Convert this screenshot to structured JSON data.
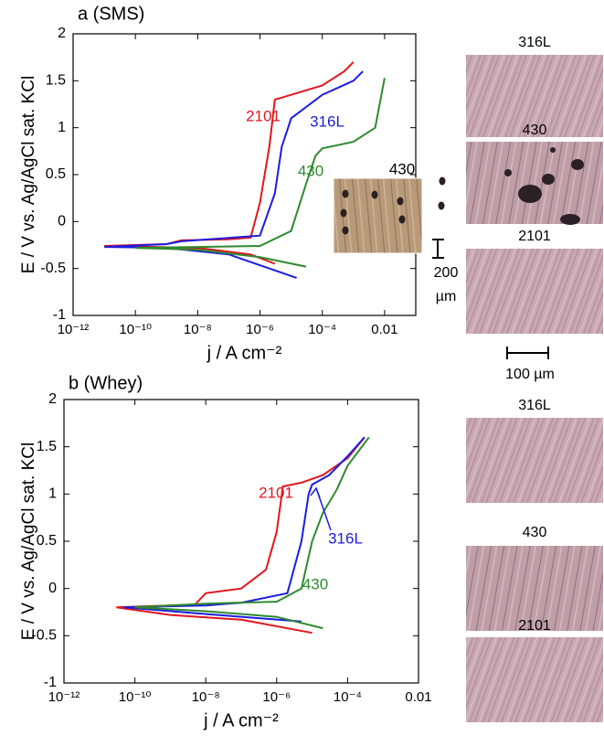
{
  "chart_data": [
    {
      "type": "line",
      "title": "a (SMS)",
      "x_label": "j / A cm⁻²",
      "y_label": "E / V vs. Ag/AgCl sat. KCl",
      "log_x": true,
      "xlim": [
        1e-12,
        0.1
      ],
      "xticks": [
        {
          "value": 1e-12,
          "label": "10⁻¹²"
        },
        {
          "value": 1e-10,
          "label": "10⁻¹⁰"
        },
        {
          "value": 1e-08,
          "label": "10⁻⁸"
        },
        {
          "value": 1e-06,
          "label": "10⁻⁶"
        },
        {
          "value": 0.0001,
          "label": "10⁻⁴"
        },
        0.01
      ],
      "ylim": [
        -1,
        2
      ],
      "yticks": [
        -1,
        -0.5,
        0,
        0.5,
        1,
        1.5,
        2
      ],
      "series": [
        {
          "name": "2101",
          "color": "#e0161c",
          "x": [
            3e-06,
            5e-07,
            1e-08,
            1e-11,
            1e-09,
            3e-09,
            1e-07,
            5e-07,
            1e-06,
            2e-06,
            3e-06,
            5e-06,
            1e-05,
            0.0001,
            0.0005,
            0.001
          ],
          "values": [
            -0.45,
            -0.35,
            -0.28,
            -0.26,
            -0.24,
            -0.2,
            -0.19,
            -0.17,
            0.2,
            0.8,
            1.3,
            1.32,
            1.35,
            1.45,
            1.6,
            1.7
          ]
        },
        {
          "name": "316L",
          "color": "#1c1ce0",
          "x": [
            1.5e-05,
            1e-07,
            1e-09,
            1e-11,
            1e-09,
            3e-09,
            1e-06,
            3e-06,
            5e-06,
            8e-06,
            1e-05,
            0.0001,
            0.001,
            0.002
          ],
          "values": [
            -0.6,
            -0.35,
            -0.28,
            -0.27,
            -0.24,
            -0.21,
            -0.15,
            0.3,
            0.8,
            1.0,
            1.1,
            1.35,
            1.5,
            1.6
          ]
        },
        {
          "name": "430",
          "color": "#2e8a2e",
          "x": [
            3e-05,
            1e-06,
            1e-08,
            1e-10,
            1e-08,
            1e-06,
            1e-05,
            3e-05,
            6e-05,
            0.0001,
            0.001,
            0.005,
            0.01
          ],
          "values": [
            -0.48,
            -0.38,
            -0.3,
            -0.28,
            -0.27,
            -0.26,
            -0.1,
            0.4,
            0.7,
            0.78,
            0.85,
            1.0,
            1.53
          ]
        }
      ],
      "inset": {
        "title": "430",
        "scale": [
          "200",
          "µm"
        ]
      }
    },
    {
      "type": "line",
      "title": "b (Whey)",
      "x_label": "j / A cm⁻²",
      "y_label": "E / V vs. Ag/AgCl sat. KCl",
      "log_x": true,
      "xlim": [
        1e-12,
        0.01
      ],
      "xticks": [
        {
          "value": 1e-12,
          "label": "10⁻¹²"
        },
        {
          "value": 1e-10,
          "label": "10⁻¹⁰"
        },
        {
          "value": 1e-08,
          "label": "10⁻⁸"
        },
        {
          "value": 1e-06,
          "label": "10⁻⁶"
        },
        {
          "value": 0.0001,
          "label": "10⁻⁴"
        },
        0.01
      ],
      "ylim": [
        -1,
        2
      ],
      "yticks": [
        -1,
        -0.5,
        0,
        0.5,
        1,
        1.5,
        2
      ],
      "series": [
        {
          "name": "2101",
          "color": "#e0161c",
          "x": [
            1e-05,
            1e-07,
            1e-09,
            3e-11,
            5e-09,
            1e-08,
            1e-07,
            5e-07,
            1e-06,
            1.5e-06,
            5e-06,
            2e-05,
            0.0001,
            0.0003
          ],
          "values": [
            -0.47,
            -0.33,
            -0.28,
            -0.2,
            -0.17,
            -0.05,
            0,
            0.2,
            0.6,
            1.08,
            1.12,
            1.2,
            1.38,
            1.6
          ]
        },
        {
          "name": "316L",
          "color": "#1c1ce0",
          "x": [
            5e-06,
            1e-08,
            5e-11,
            1e-08,
            1e-07,
            2e-06,
            5e-06,
            8e-06,
            1e-05,
            3e-05,
            0.0001,
            0.0003
          ],
          "values": [
            -0.35,
            -0.27,
            -0.2,
            -0.18,
            -0.15,
            -0.05,
            0.5,
            1.0,
            1.1,
            1.2,
            1.4,
            1.6
          ]
        },
        {
          "name": "430",
          "color": "#2e8a2e",
          "x": [
            2e-05,
            1e-06,
            1e-08,
            1e-10,
            1e-08,
            1e-06,
            5e-06,
            1e-05,
            2e-05,
            5e-05,
            0.0001,
            0.0004
          ],
          "values": [
            -0.42,
            -0.3,
            -0.24,
            -0.2,
            -0.16,
            -0.14,
            0,
            0.5,
            0.8,
            1.05,
            1.3,
            1.6
          ]
        }
      ]
    }
  ],
  "images": {
    "sms": [
      "316L",
      "430",
      "2101"
    ],
    "scale": "100 µm",
    "whey": [
      "316L",
      "430",
      "2101"
    ]
  }
}
